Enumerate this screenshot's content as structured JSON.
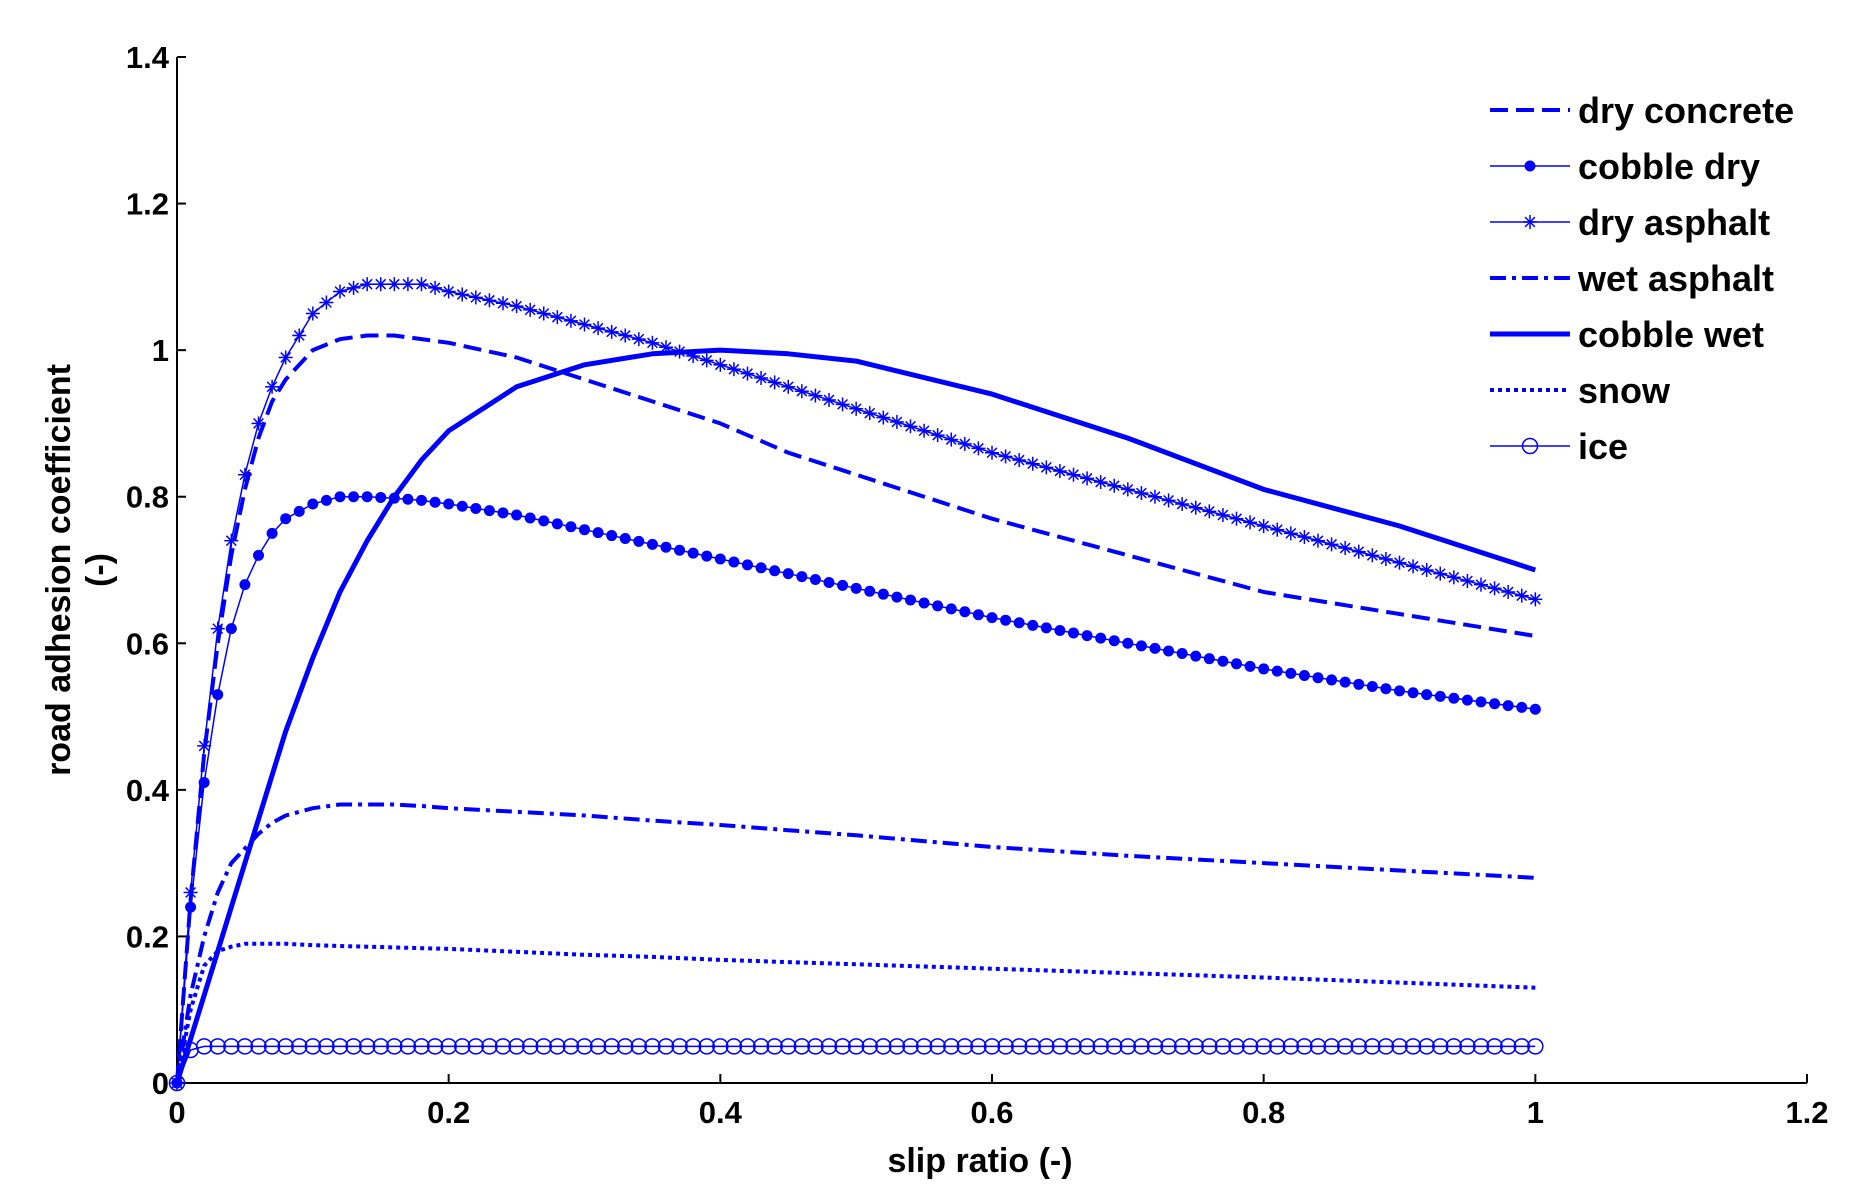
{
  "chart_data": {
    "type": "line",
    "title": "",
    "xlabel": "slip ratio (-)",
    "ylabel_line1": "road adhesion coefficient",
    "ylabel_line2": "(-)",
    "xlim": [
      0,
      1.2
    ],
    "ylim": [
      0,
      1.4
    ],
    "x_ticks": [
      0,
      0.2,
      0.4,
      0.6,
      0.8,
      1,
      1.2
    ],
    "x_tick_labels": [
      "0",
      "0.2",
      "0.4",
      "0.6",
      "0.8",
      "1",
      "1.2"
    ],
    "y_ticks": [
      0,
      0.2,
      0.4,
      0.6,
      0.8,
      1,
      1.2,
      1.4
    ],
    "y_tick_labels": [
      "0",
      "0.2",
      "0.4",
      "0.6",
      "0.8",
      "1",
      "1.2",
      "1.4"
    ],
    "grid": false,
    "legend_position": "top-right",
    "color": "#0000ff",
    "x": [
      0,
      0.01,
      0.02,
      0.03,
      0.04,
      0.05,
      0.06,
      0.07,
      0.08,
      0.1,
      0.12,
      0.14,
      0.16,
      0.18,
      0.2,
      0.25,
      0.3,
      0.35,
      0.4,
      0.45,
      0.5,
      0.6,
      0.7,
      0.8,
      0.9,
      1.0
    ],
    "series": [
      {
        "name": "dry concrete",
        "style": "dashed",
        "values": [
          0,
          0.25,
          0.45,
          0.6,
          0.72,
          0.81,
          0.88,
          0.93,
          0.96,
          1.0,
          1.015,
          1.02,
          1.02,
          1.015,
          1.01,
          0.99,
          0.96,
          0.93,
          0.9,
          0.86,
          0.83,
          0.77,
          0.72,
          0.67,
          0.64,
          0.61
        ]
      },
      {
        "name": "cobble dry",
        "style": "solid-dot",
        "values": [
          0,
          0.24,
          0.41,
          0.53,
          0.62,
          0.68,
          0.72,
          0.75,
          0.77,
          0.79,
          0.8,
          0.8,
          0.798,
          0.795,
          0.79,
          0.775,
          0.755,
          0.735,
          0.715,
          0.695,
          0.675,
          0.635,
          0.6,
          0.565,
          0.535,
          0.51
        ]
      },
      {
        "name": "dry asphalt",
        "style": "solid-star",
        "values": [
          0,
          0.26,
          0.46,
          0.62,
          0.74,
          0.83,
          0.9,
          0.95,
          0.99,
          1.05,
          1.08,
          1.09,
          1.09,
          1.09,
          1.08,
          1.06,
          1.035,
          1.01,
          0.98,
          0.95,
          0.92,
          0.86,
          0.81,
          0.76,
          0.71,
          0.66
        ]
      },
      {
        "name": "wet asphalt",
        "style": "dashdot",
        "values": [
          0,
          0.12,
          0.2,
          0.26,
          0.3,
          0.32,
          0.34,
          0.355,
          0.365,
          0.375,
          0.38,
          0.38,
          0.38,
          0.378,
          0.375,
          0.37,
          0.365,
          0.358,
          0.352,
          0.345,
          0.338,
          0.322,
          0.31,
          0.3,
          0.29,
          0.28
        ]
      },
      {
        "name": "cobble wet",
        "style": "solid",
        "values": [
          0,
          0.06,
          0.12,
          0.18,
          0.24,
          0.3,
          0.36,
          0.42,
          0.48,
          0.58,
          0.67,
          0.74,
          0.8,
          0.85,
          0.89,
          0.95,
          0.98,
          0.995,
          1.0,
          0.995,
          0.985,
          0.94,
          0.88,
          0.81,
          0.76,
          0.7
        ]
      },
      {
        "name": "snow",
        "style": "dotted",
        "values": [
          0,
          0.1,
          0.16,
          0.18,
          0.186,
          0.19,
          0.19,
          0.19,
          0.19,
          0.188,
          0.187,
          0.186,
          0.185,
          0.184,
          0.183,
          0.179,
          0.175,
          0.172,
          0.168,
          0.165,
          0.162,
          0.156,
          0.15,
          0.144,
          0.137,
          0.13
        ]
      },
      {
        "name": "ice",
        "style": "solid-circle",
        "values": [
          0,
          0.045,
          0.05,
          0.05,
          0.05,
          0.05,
          0.05,
          0.05,
          0.05,
          0.05,
          0.05,
          0.05,
          0.05,
          0.05,
          0.05,
          0.05,
          0.05,
          0.05,
          0.05,
          0.05,
          0.05,
          0.05,
          0.05,
          0.05,
          0.05,
          0.05
        ]
      }
    ]
  }
}
